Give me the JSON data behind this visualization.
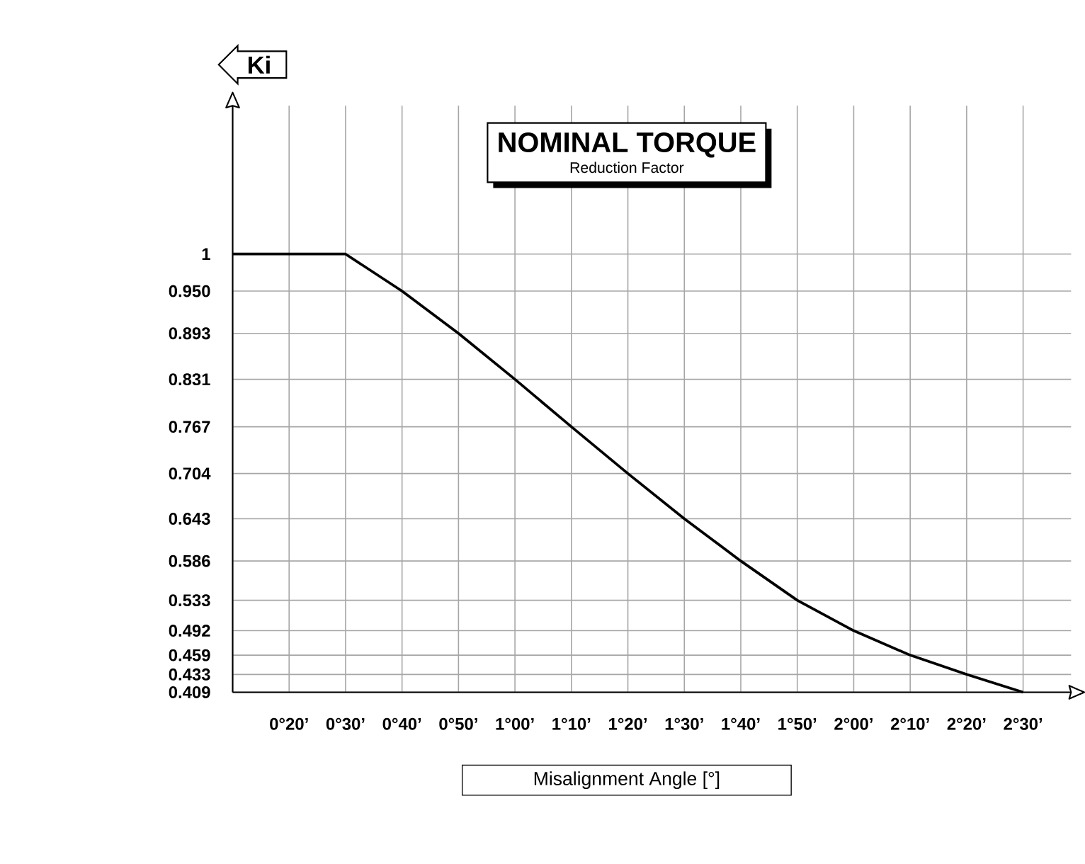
{
  "chart_data": {
    "type": "line",
    "title": "NOMINAL TORQUE",
    "subtitle": "Reduction Factor",
    "xlabel": "Misalignment Angle [°]",
    "ylabel": "Ki",
    "categories": [
      null,
      "0°20’",
      "0°30’",
      "0°40’",
      "0°50’",
      "1°00’",
      "1°10’",
      "1°20’",
      "1°30’",
      "1°40’",
      "1°50’",
      "2°00’",
      "2°10’",
      "2°20’",
      "2°30’"
    ],
    "series": [
      {
        "color": "#000000",
        "values": [
          1,
          1,
          1,
          0.95,
          0.893,
          0.831,
          0.767,
          0.704,
          0.643,
          0.586,
          0.533,
          0.492,
          0.459,
          0.433,
          0.409
        ]
      }
    ],
    "ylim": [
      0.409,
      1.2
    ],
    "yticks": [
      1,
      {
        "value": 0.95,
        "label": "0.950"
      },
      {
        "value": 0.893,
        "label": "0.893"
      },
      {
        "value": 0.831,
        "label": "0.831"
      },
      {
        "value": 0.767,
        "label": "0.767"
      },
      {
        "value": 0.704,
        "label": "0.704"
      },
      {
        "value": 0.643,
        "label": "0.643"
      },
      {
        "value": 0.586,
        "label": "0.586"
      },
      {
        "value": 0.533,
        "label": "0.533"
      },
      {
        "value": 0.492,
        "label": "0.492"
      },
      {
        "value": 0.459,
        "label": "0.459"
      },
      {
        "value": 0.433,
        "label": "0.433"
      },
      {
        "value": 0.409,
        "label": "0.409"
      }
    ],
    "grid": true,
    "marker": "none",
    "line_style": "solid"
  }
}
